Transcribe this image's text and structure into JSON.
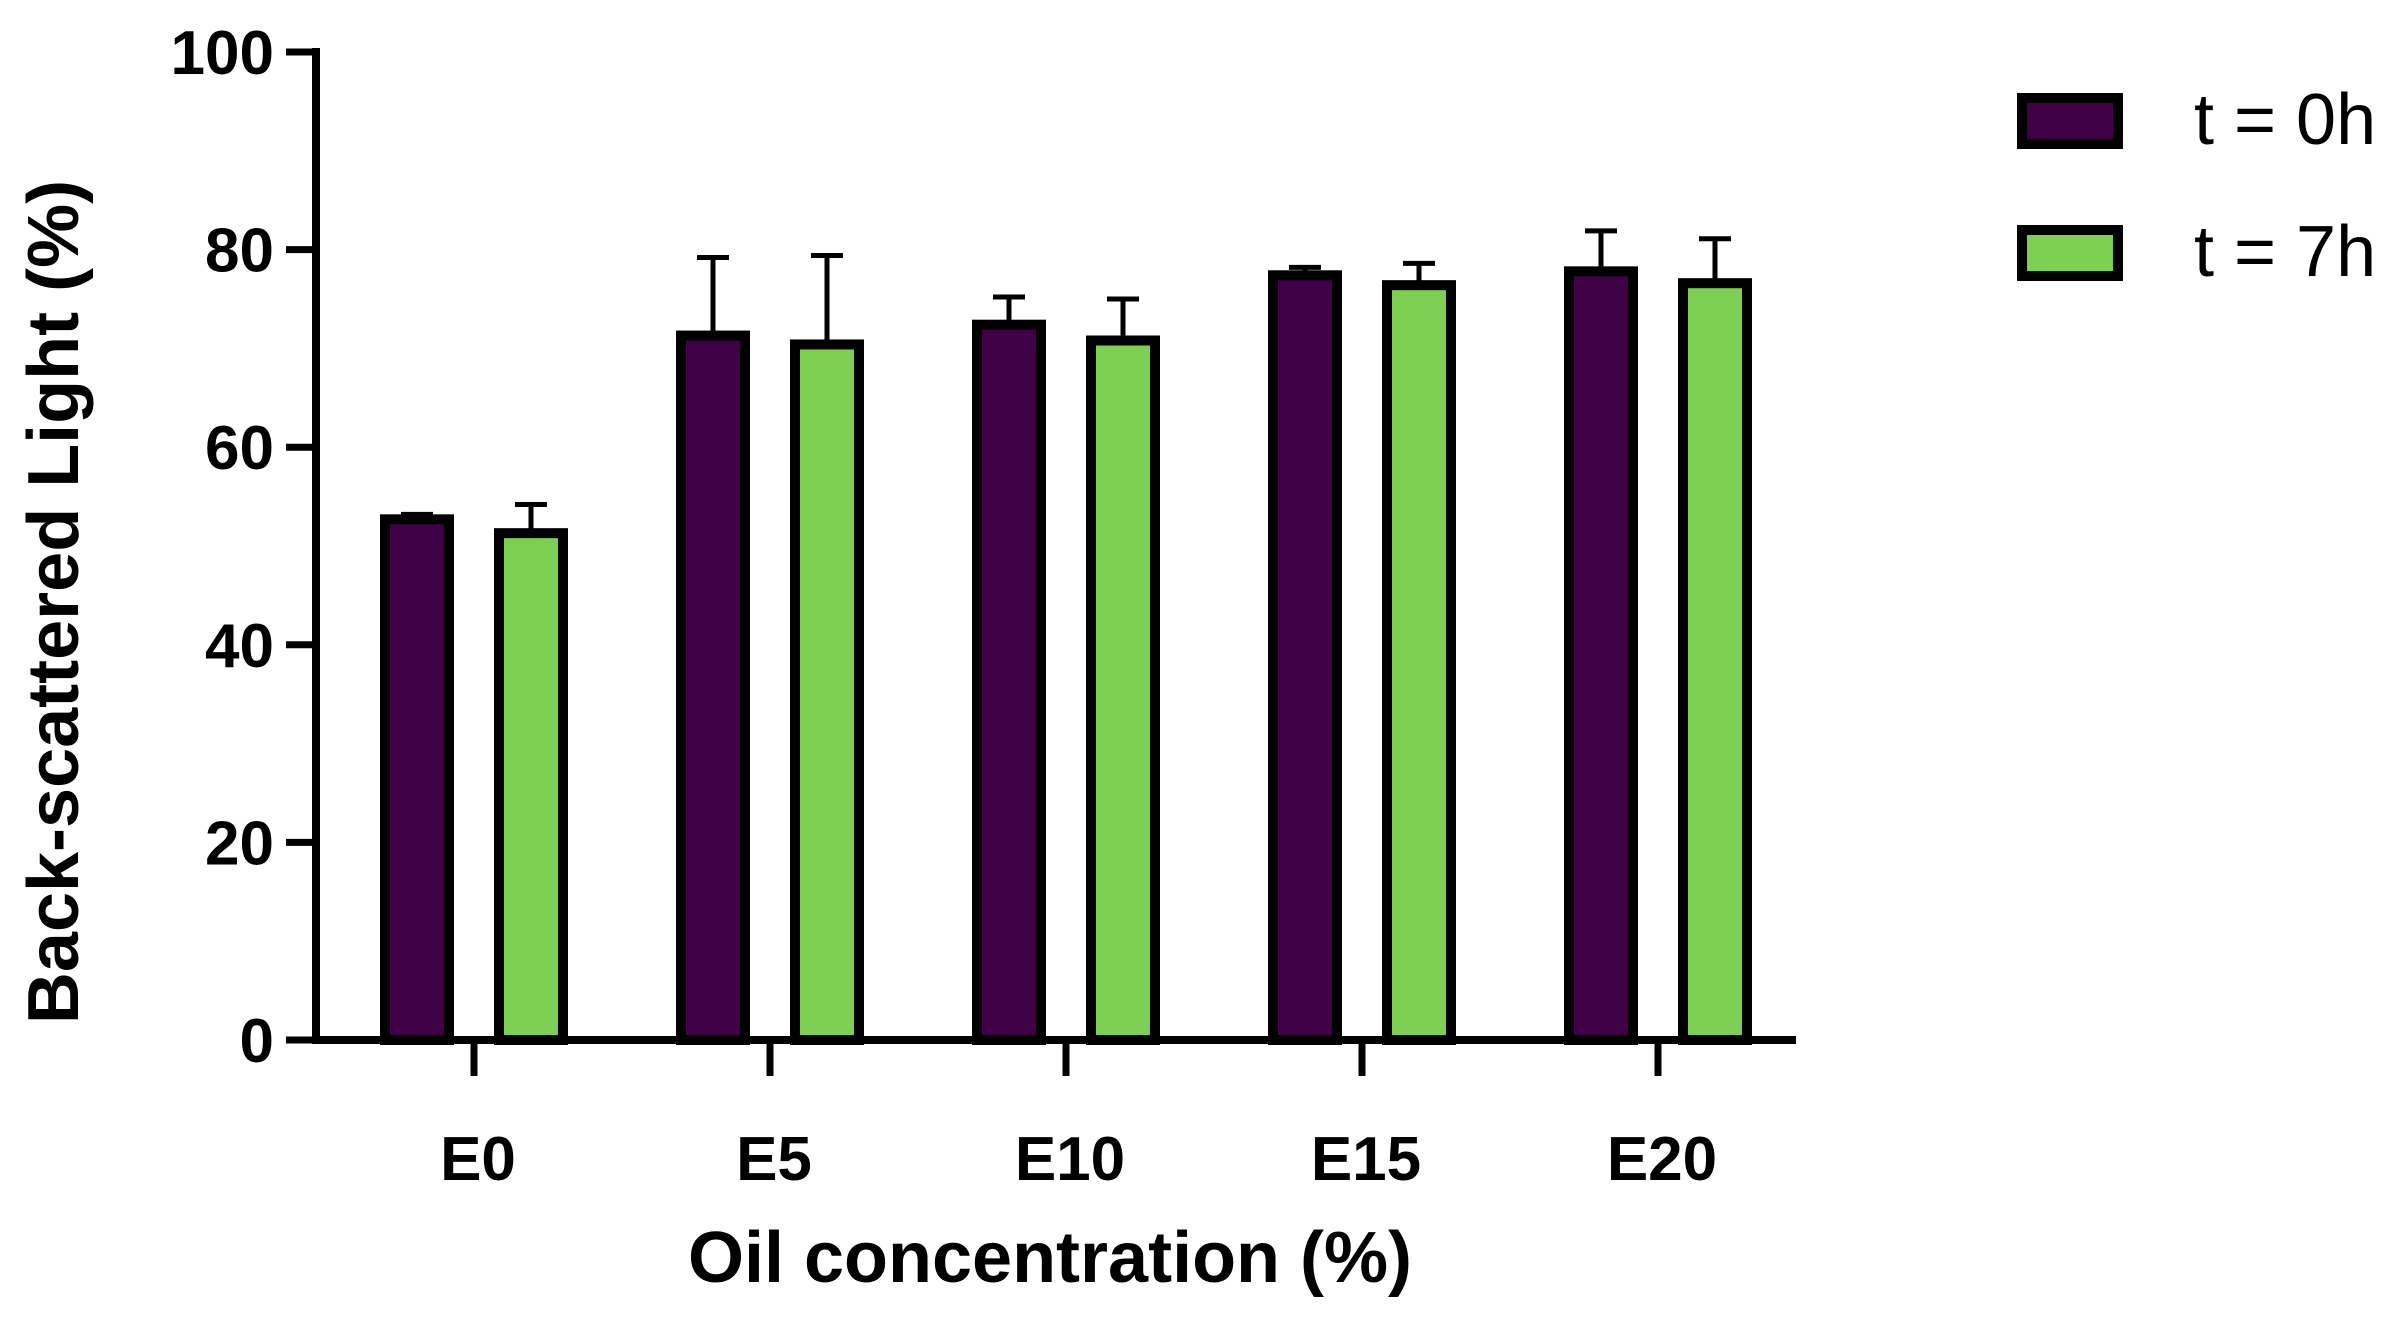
{
  "chart_data": {
    "type": "bar",
    "xlabel": "Oil concentration  (%)",
    "ylabel": "Back-scattered Light (%)",
    "ylim": [
      0,
      100
    ],
    "yticks": [
      "0",
      "20",
      "40",
      "60",
      "80",
      "100"
    ],
    "categories": [
      "E0",
      "E5",
      "E10",
      "E15",
      "E20"
    ],
    "series": [
      {
        "name": "t = 0h",
        "color": "#3f0045",
        "values": [
          52.7,
          71.3,
          72.4,
          77.4,
          77.8
        ],
        "errors": [
          0.5,
          7.9,
          2.8,
          0.8,
          4.1
        ]
      },
      {
        "name": "t = 7h",
        "color": "#7ccf52",
        "values": [
          51.3,
          70.4,
          70.8,
          76.4,
          76.6
        ],
        "errors": [
          2.9,
          9.0,
          4.2,
          2.2,
          4.5
        ]
      }
    ],
    "legend_position": "top-right",
    "grid": false
  }
}
